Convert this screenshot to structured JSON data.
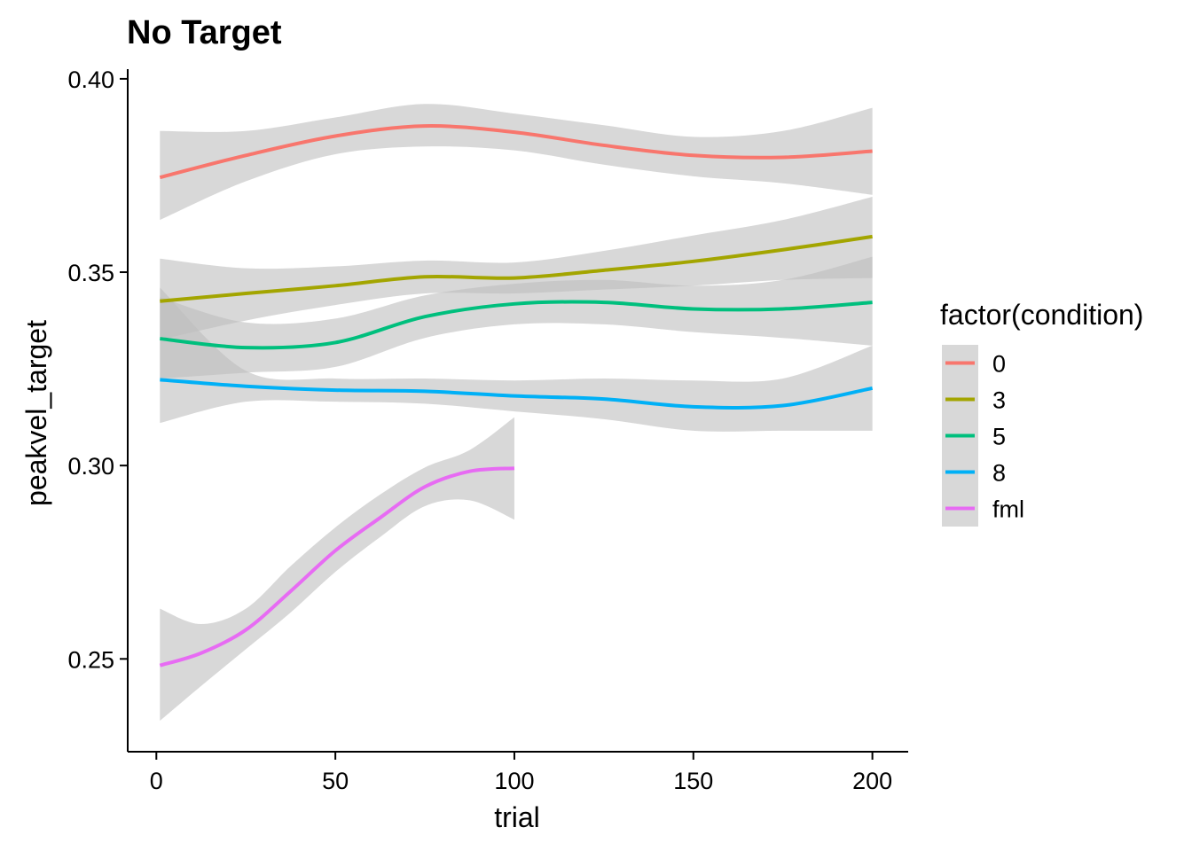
{
  "chart_data": {
    "type": "line",
    "title": "No Target",
    "xlabel": "trial",
    "ylabel": "peakvel_target",
    "xlim": [
      -8,
      210
    ],
    "ylim": [
      0.226,
      0.4025
    ],
    "x_ticks": [
      0,
      50,
      100,
      150,
      200
    ],
    "x_tick_labels": [
      "0",
      "50",
      "100",
      "150",
      "200"
    ],
    "y_ticks": [
      0.25,
      0.3,
      0.35,
      0.4
    ],
    "y_tick_labels": [
      "0.25",
      "0.30",
      "0.35",
      "0.40"
    ],
    "grid": false,
    "legend": {
      "title": "factor(condition)",
      "position": "right"
    },
    "band_color": "#bebebe",
    "series": [
      {
        "name": "0",
        "color": "#F8766D",
        "x": [
          1,
          25,
          50,
          75,
          100,
          125,
          150,
          175,
          200
        ],
        "y": [
          0.3745,
          0.3802,
          0.3852,
          0.3878,
          0.3862,
          0.3828,
          0.3802,
          0.3797,
          0.3813
        ],
        "lower": [
          0.3635,
          0.3735,
          0.3805,
          0.3825,
          0.3815,
          0.3778,
          0.3748,
          0.373,
          0.37
        ],
        "upper": [
          0.3865,
          0.3865,
          0.39,
          0.3935,
          0.391,
          0.388,
          0.385,
          0.3865,
          0.3925
        ]
      },
      {
        "name": "3",
        "color": "#A3A500",
        "x": [
          1,
          25,
          50,
          75,
          100,
          125,
          150,
          175,
          200
        ],
        "y": [
          0.3425,
          0.3445,
          0.3465,
          0.3488,
          0.3485,
          0.3505,
          0.3528,
          0.3558,
          0.3592
        ],
        "lower": [
          0.3325,
          0.3375,
          0.3415,
          0.3445,
          0.3445,
          0.3455,
          0.3465,
          0.348,
          0.3485
        ],
        "upper": [
          0.3535,
          0.351,
          0.3515,
          0.353,
          0.3525,
          0.3555,
          0.3595,
          0.3635,
          0.3695
        ]
      },
      {
        "name": "5",
        "color": "#00BF7D",
        "x": [
          1,
          25,
          50,
          75,
          100,
          125,
          150,
          175,
          200
        ],
        "y": [
          0.3328,
          0.3305,
          0.3318,
          0.3385,
          0.3418,
          0.3422,
          0.3405,
          0.3405,
          0.3422
        ],
        "lower": [
          0.3225,
          0.324,
          0.3255,
          0.333,
          0.3365,
          0.3365,
          0.3345,
          0.333,
          0.331
        ],
        "upper": [
          0.3435,
          0.337,
          0.338,
          0.344,
          0.347,
          0.348,
          0.3465,
          0.348,
          0.354
        ]
      },
      {
        "name": "8",
        "color": "#00B0F6",
        "x": [
          1,
          25,
          50,
          75,
          100,
          125,
          150,
          175,
          200
        ],
        "y": [
          0.3222,
          0.3205,
          0.3195,
          0.3192,
          0.318,
          0.3172,
          0.3152,
          0.3155,
          0.32
        ],
        "lower": [
          0.311,
          0.3165,
          0.3165,
          0.316,
          0.314,
          0.312,
          0.309,
          0.309,
          0.309
        ],
        "upper": [
          0.346,
          0.3245,
          0.3225,
          0.3225,
          0.322,
          0.3225,
          0.322,
          0.3225,
          0.331
        ]
      },
      {
        "name": "fml",
        "color": "#E76BF3",
        "x": [
          1,
          12.5,
          25,
          37.5,
          50,
          62.5,
          75,
          87.5,
          100
        ],
        "y": [
          0.2483,
          0.2515,
          0.2575,
          0.2675,
          0.278,
          0.2865,
          0.2945,
          0.2985,
          0.2993
        ],
        "lower": [
          0.234,
          0.243,
          0.2525,
          0.262,
          0.2725,
          0.2815,
          0.2895,
          0.291,
          0.286
        ],
        "upper": [
          0.263,
          0.259,
          0.263,
          0.274,
          0.284,
          0.2925,
          0.2995,
          0.304,
          0.3125
        ]
      }
    ]
  }
}
